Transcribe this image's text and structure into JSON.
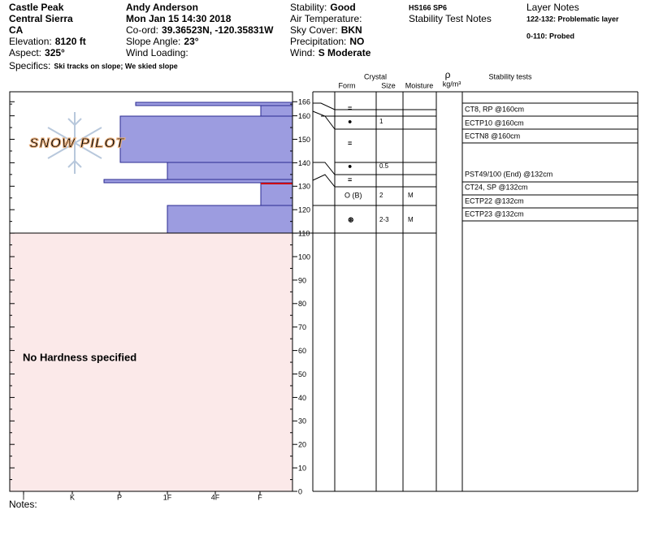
{
  "site": {
    "name": "Castle Peak",
    "range": "Central Sierra",
    "state": "CA",
    "elevation_label": "Elevation:",
    "elevation": "8120 ft",
    "aspect_label": "Aspect:",
    "aspect": "325°",
    "specifics_label": "Specifics:",
    "specifics": "Ski tracks on slope; We skied slope"
  },
  "observer": {
    "name": "Andy Anderson",
    "date": "Mon Jan 15 14:30 2018",
    "coord_label": "Co-ord:",
    "coord": "39.36523N, -120.35831W",
    "slope_label": "Slope Angle:",
    "slope": "23°",
    "wind_loading": "Wind Loading:"
  },
  "conditions": [
    {
      "label": "Stability:",
      "value": "Good"
    },
    {
      "label": "Air Temperature:"
    },
    {
      "label": "Sky Cover:",
      "value": "BKN"
    },
    {
      "label": "Precipitation:",
      "value": "NO"
    },
    {
      "label": "Wind:",
      "value": "S Moderate"
    }
  ],
  "summary": {
    "code": "HS166 SP6",
    "title": "Stability Test Notes"
  },
  "layer_notes": {
    "title": "Layer Notes",
    "items": [
      "122-132: Problematic layer",
      "0-110: Probed"
    ]
  },
  "logo": "SNOW PILOT",
  "hardness_axis": [
    "I",
    "K",
    "P",
    "1F",
    "4F",
    "F"
  ],
  "height_axis": [
    166,
    160,
    150,
    140,
    130,
    120,
    110,
    100,
    90,
    80,
    70,
    60,
    50,
    40,
    30,
    20,
    10,
    0
  ],
  "no_hardness": "No Hardness specified",
  "table_headers": {
    "crystal": "Crystal",
    "form": "Form",
    "size": "Size",
    "moisture": "Moisture",
    "rho": "ρ",
    "density": "kg/m³",
    "tests": "Stability tests"
  },
  "layers": [
    {
      "form": "="
    },
    {
      "form": "●",
      "size": "1"
    },
    {
      "form": "="
    },
    {
      "form": "●",
      "size": "0.5"
    },
    {
      "form": "="
    },
    {
      "form": "O (B)",
      "size": "2",
      "moisture": "M"
    },
    {
      "form": "⊛",
      "size": "2-3",
      "moisture": "M"
    }
  ],
  "stability_tests": [
    "CT8, RP @160cm",
    "ECTP10 @160cm",
    "ECTN8 @160cm",
    "PST49/100 (End) @132cm",
    "CT24, SP @132cm",
    "ECTP22 @132cm",
    "ECTP23 @132cm"
  ],
  "notes_label": "Notes:"
}
